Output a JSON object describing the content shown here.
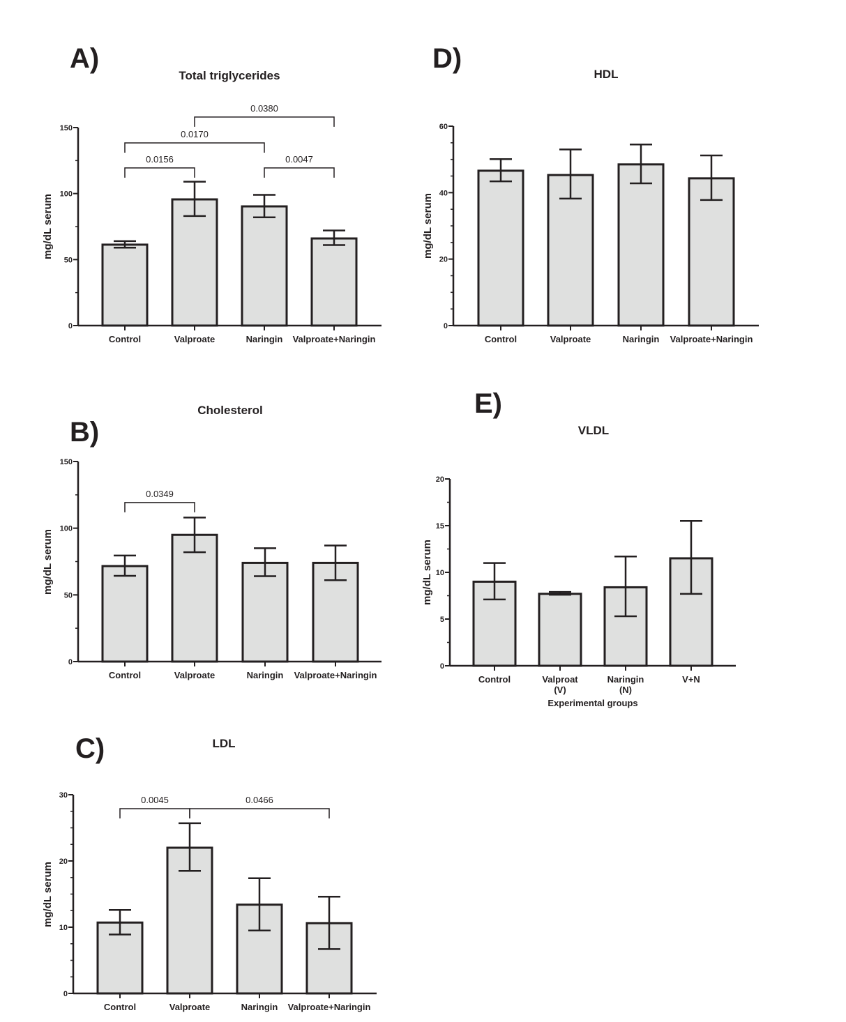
{
  "chart_data": [
    {
      "panel": "A)",
      "type": "bar",
      "title": "Total triglycerides",
      "ylabel": "mg/dL serum",
      "xlabel": "",
      "ylim": [
        0,
        150
      ],
      "yticks": [
        0,
        50,
        100,
        150
      ],
      "minor_step": 25,
      "categories": [
        "Control",
        "Valproate",
        "Naringin",
        "Valproate+Naringin"
      ],
      "values": [
        61.3,
        95.6,
        90.3,
        66.0
      ],
      "err_high": [
        64,
        109,
        99,
        72
      ],
      "err_low": [
        59,
        83,
        82,
        61
      ],
      "comparisons": [
        {
          "from": 0,
          "to": 1,
          "y": 119.4,
          "p": "0.0156"
        },
        {
          "from": 0,
          "to": 2,
          "y": 138.4,
          "p": "0.0170"
        },
        {
          "from": 2,
          "to": 3,
          "y": 119.4,
          "p": "0.0047"
        },
        {
          "from": 1,
          "to": 3,
          "y": 158,
          "p": "0.0380"
        }
      ],
      "bar_color": "#dfe0df",
      "edge_color": "#231f20"
    },
    {
      "panel": "B)",
      "type": "bar",
      "title": "Cholesterol",
      "ylabel": "mg/dL serum",
      "xlabel": "",
      "ylim": [
        0,
        150
      ],
      "yticks": [
        0,
        50,
        100,
        150
      ],
      "minor_step": 25,
      "categories": [
        "Control",
        "Valproate",
        "Naringin",
        "Valproate+Naringin"
      ],
      "values": [
        71.6,
        95.0,
        74.0,
        74.0
      ],
      "err_high": [
        79.5,
        108,
        85,
        87
      ],
      "err_low": [
        64.3,
        82,
        64,
        61
      ],
      "comparisons": [
        {
          "from": 0,
          "to": 1,
          "y": 119.2,
          "p": "0.0349"
        }
      ],
      "bar_color": "#dfe0df",
      "edge_color": "#231f20"
    },
    {
      "panel": "C)",
      "type": "bar",
      "title": "LDL",
      "ylabel": "mg/dL serum",
      "xlabel": "",
      "ylim": [
        0,
        30
      ],
      "yticks": [
        0,
        10,
        20,
        30
      ],
      "minor_step": 2.5,
      "categories": [
        "Control",
        "Valproate",
        "Naringin",
        "Valproate+Naringin"
      ],
      "values": [
        10.7,
        22.0,
        13.4,
        10.6
      ],
      "err_high": [
        12.6,
        25.7,
        17.4,
        14.6
      ],
      "err_low": [
        8.9,
        18.5,
        9.5,
        6.7
      ],
      "comparisons": [
        {
          "from": 0,
          "to": 1,
          "y": 27.9,
          "p": "0.0045"
        },
        {
          "from": 1,
          "to": 3,
          "y": 27.9,
          "p": "0.0466"
        }
      ],
      "bar_color": "#dfe0df",
      "edge_color": "#231f20"
    },
    {
      "panel": "D)",
      "type": "bar",
      "title": "HDL",
      "ylabel": "mg/dL serum",
      "xlabel": "",
      "ylim": [
        0,
        60
      ],
      "yticks": [
        0,
        20,
        40,
        60
      ],
      "minor_step": 5,
      "categories": [
        "Control",
        "Valproate",
        "Naringin",
        "Valproate+Naringin"
      ],
      "values": [
        46.6,
        45.3,
        48.5,
        44.3
      ],
      "err_high": [
        50.1,
        53.0,
        54.5,
        51.2
      ],
      "err_low": [
        43.4,
        38.2,
        42.8,
        37.8
      ],
      "comparisons": [],
      "bar_color": "#dfe0df",
      "edge_color": "#231f20"
    },
    {
      "panel": "E)",
      "type": "bar",
      "title": "VLDL",
      "ylabel": "mg/dL serum",
      "xlabel": "Experimental groups",
      "ylim": [
        0,
        20
      ],
      "yticks": [
        0,
        5,
        10,
        15,
        20
      ],
      "minor_step": 2.5,
      "categories": [
        "Control",
        "Valproat\n(V)",
        "Naringin\n(N)",
        "V+N"
      ],
      "values": [
        9.0,
        7.7,
        8.4,
        11.5
      ],
      "err_high": [
        11.0,
        7.9,
        11.7,
        15.5
      ],
      "err_low": [
        7.1,
        7.6,
        5.3,
        7.7
      ],
      "comparisons": [],
      "bar_color": "#dfe0df",
      "edge_color": "#231f20"
    }
  ]
}
